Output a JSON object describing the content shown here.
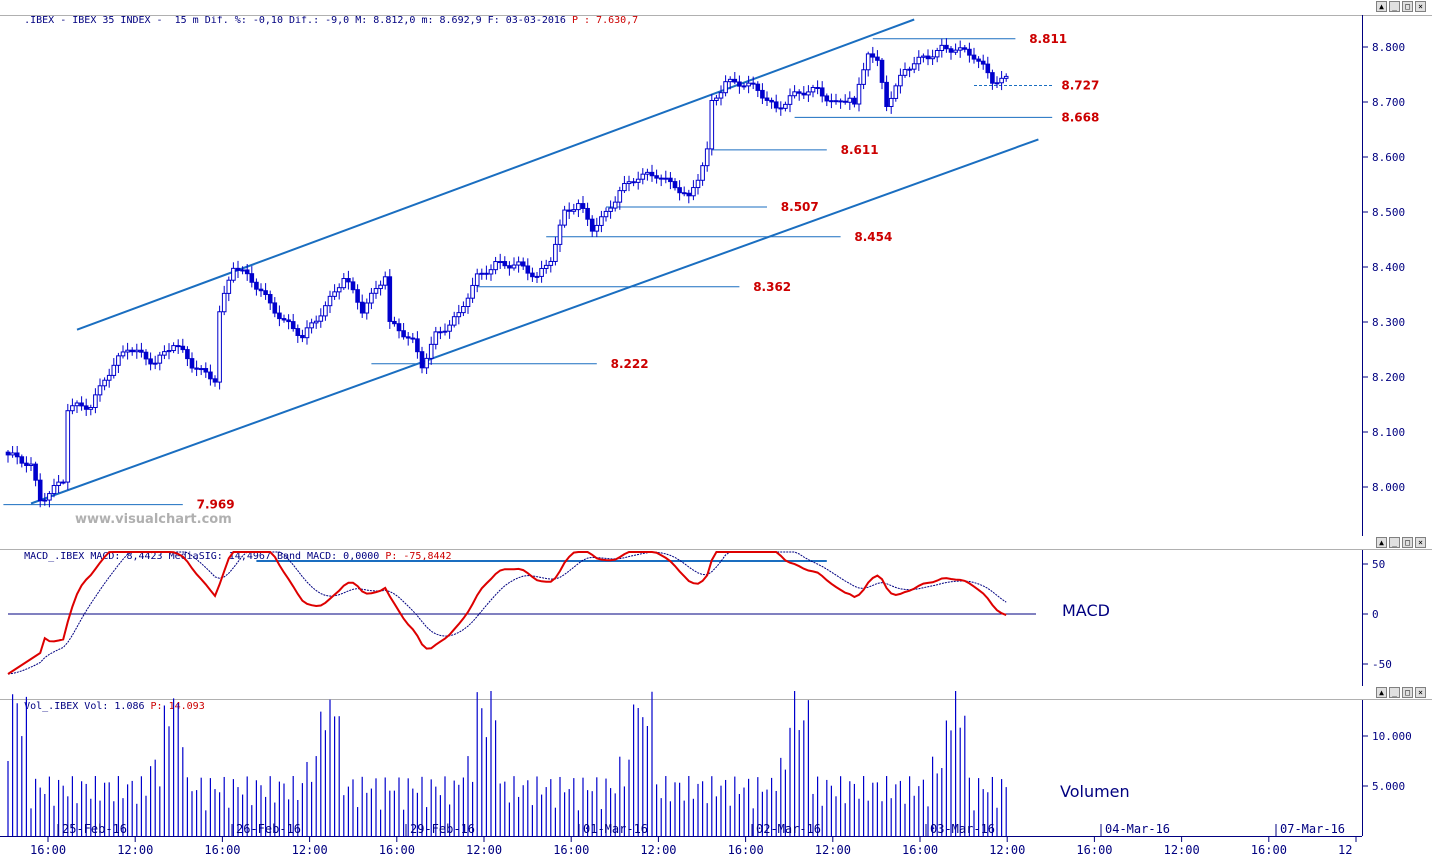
{
  "price_pane": {
    "header": [
      {
        "text": ".IBEX - IBEX 35 INDEX -  15 m Dif. %: -0,10 Dif.: -9,0 M: 8.812,0 m: 8.692,9 F: 03-03-2016 ",
        "color": "navy"
      },
      {
        "text": "P : 7.630,7",
        "color": "red"
      }
    ],
    "watermark": "www.visualchart.com"
  },
  "macd_pane": {
    "header": [
      {
        "text": "MACD_.IBEX MACD: 8,4423 MediaSIG: 14,4967 Band_MACD: 0,0000 ",
        "color": "navy"
      },
      {
        "text": "P: -75,8442",
        "color": "red"
      }
    ],
    "label": "MACD"
  },
  "volume_pane": {
    "header": [
      {
        "text": "Vol_.IBEX Vol: 1.086 ",
        "color": "navy"
      },
      {
        "text": "P: 14.093",
        "color": "red"
      }
    ],
    "label": "Volumen"
  },
  "window_buttons": [
    "▲",
    "_",
    "□",
    "×"
  ],
  "colors": {
    "candle": "#0000cc",
    "trendline": "#1a6ec0",
    "level_line": "#1a6ec0",
    "level_text": "#cc0000",
    "macd": "#dd0000",
    "signal": "#000080",
    "volume": "#0000cc",
    "axis_text": "#000080",
    "watermark": "#b0b0b0"
  },
  "chart_data": [
    {
      "type": "candlestick",
      "series_name": "IBEX 35 INDEX",
      "ylim": [
        7930,
        8870
      ],
      "y_ticks": [
        8000,
        8100,
        8200,
        8300,
        8400,
        8500,
        8600,
        8700,
        8800
      ],
      "y_tick_labels": [
        "8.000",
        "8.100",
        "8.200",
        "8.300",
        "8.400",
        "8.500",
        "8.600",
        "8.700",
        "8.800"
      ],
      "date_labels": [
        "25-Feb-16",
        "26-Feb-16",
        "29-Feb-16",
        "01-Mar-16",
        "02-Mar-16",
        "03-Mar-16",
        "04-Mar-16",
        "07-Mar-16"
      ],
      "time_labels": [
        "16:00",
        "12:00",
        "16:00",
        "12:00",
        "16:00",
        "12:00",
        "16:00",
        "12:00",
        "16:00",
        "12:00",
        "16:00",
        "12:00",
        "16:00",
        "12:00",
        "16:00",
        "12"
      ],
      "waypoints": [
        [
          0,
          8055
        ],
        [
          5,
          8040
        ],
        [
          7,
          7980
        ],
        [
          12,
          8010
        ],
        [
          13,
          8140
        ],
        [
          18,
          8150
        ],
        [
          21,
          8200
        ],
        [
          26,
          8250
        ],
        [
          32,
          8230
        ],
        [
          36,
          8260
        ],
        [
          40,
          8220
        ],
        [
          45,
          8200
        ],
        [
          46,
          8320
        ],
        [
          49,
          8400
        ],
        [
          55,
          8360
        ],
        [
          60,
          8300
        ],
        [
          64,
          8270
        ],
        [
          68,
          8320
        ],
        [
          73,
          8380
        ],
        [
          77,
          8320
        ],
        [
          82,
          8390
        ],
        [
          83,
          8300
        ],
        [
          88,
          8260
        ],
        [
          90,
          8220
        ],
        [
          93,
          8280
        ],
        [
          98,
          8310
        ],
        [
          102,
          8380
        ],
        [
          106,
          8410
        ],
        [
          111,
          8400
        ],
        [
          115,
          8380
        ],
        [
          118,
          8420
        ],
        [
          121,
          8500
        ],
        [
          124,
          8510
        ],
        [
          127,
          8470
        ],
        [
          130,
          8500
        ],
        [
          133,
          8540
        ],
        [
          137,
          8560
        ],
        [
          141,
          8570
        ],
        [
          145,
          8550
        ],
        [
          148,
          8520
        ],
        [
          150,
          8560
        ],
        [
          152,
          8610
        ],
        [
          153,
          8700
        ],
        [
          156,
          8740
        ],
        [
          160,
          8730
        ],
        [
          163,
          8720
        ],
        [
          167,
          8690
        ],
        [
          170,
          8710
        ],
        [
          176,
          8720
        ],
        [
          180,
          8700
        ],
        [
          183,
          8710
        ],
        [
          184,
          8690
        ],
        [
          187,
          8790
        ],
        [
          189,
          8770
        ],
        [
          191,
          8700
        ],
        [
          195,
          8760
        ],
        [
          200,
          8780
        ],
        [
          203,
          8800
        ],
        [
          206,
          8800
        ],
        [
          210,
          8780
        ],
        [
          214,
          8740
        ],
        [
          217,
          8745
        ]
      ],
      "levels": [
        {
          "value": "8.811",
          "y": 8815,
          "x_from": 188,
          "x_to": 219,
          "label_x": 222
        },
        {
          "value": "8.727",
          "y": 8730,
          "x_from": 210,
          "x_to": 227,
          "label_x": 229,
          "dotted": true
        },
        {
          "value": "8.668",
          "y": 8672,
          "x_from": 171,
          "x_to": 227,
          "label_x": 229
        },
        {
          "value": "8.611",
          "y": 8613,
          "x_from": 153,
          "x_to": 178,
          "label_x": 181
        },
        {
          "value": "8.507",
          "y": 8509,
          "x_from": 130,
          "x_to": 165,
          "label_x": 168
        },
        {
          "value": "8.454",
          "y": 8455,
          "x_from": 117,
          "x_to": 181,
          "label_x": 184
        },
        {
          "value": "8.362",
          "y": 8364,
          "x_from": 102,
          "x_to": 159,
          "label_x": 162
        },
        {
          "value": "8.222",
          "y": 8224,
          "x_from": 79,
          "x_to": 128,
          "label_x": 131
        },
        {
          "value": "7.969",
          "y": 7968,
          "x_from": -1,
          "x_to": 38,
          "label_x": 41
        }
      ],
      "channel": [
        {
          "from": [
            15,
            8286
          ],
          "to": [
            197,
            8850
          ]
        },
        {
          "from": [
            5,
            7970
          ],
          "to": [
            224,
            8632
          ]
        }
      ]
    },
    {
      "type": "line",
      "series": [
        {
          "name": "MACD"
        },
        {
          "name": "MediaSIG"
        }
      ],
      "ylim": [
        -72,
        62
      ],
      "y_ticks": [
        50,
        0,
        -50
      ],
      "y_tick_labels": [
        "50",
        "0",
        "-50"
      ],
      "baseline": 0,
      "reference_line": {
        "y": 53,
        "x_from": 54,
        "x_to": 178
      }
    },
    {
      "type": "bar",
      "series": [
        {
          "name": "Vol"
        }
      ],
      "ylim": [
        0,
        14500
      ],
      "y_ticks": [
        10000,
        5000
      ],
      "y_tick_labels": [
        "10.000",
        "5.000"
      ]
    }
  ]
}
